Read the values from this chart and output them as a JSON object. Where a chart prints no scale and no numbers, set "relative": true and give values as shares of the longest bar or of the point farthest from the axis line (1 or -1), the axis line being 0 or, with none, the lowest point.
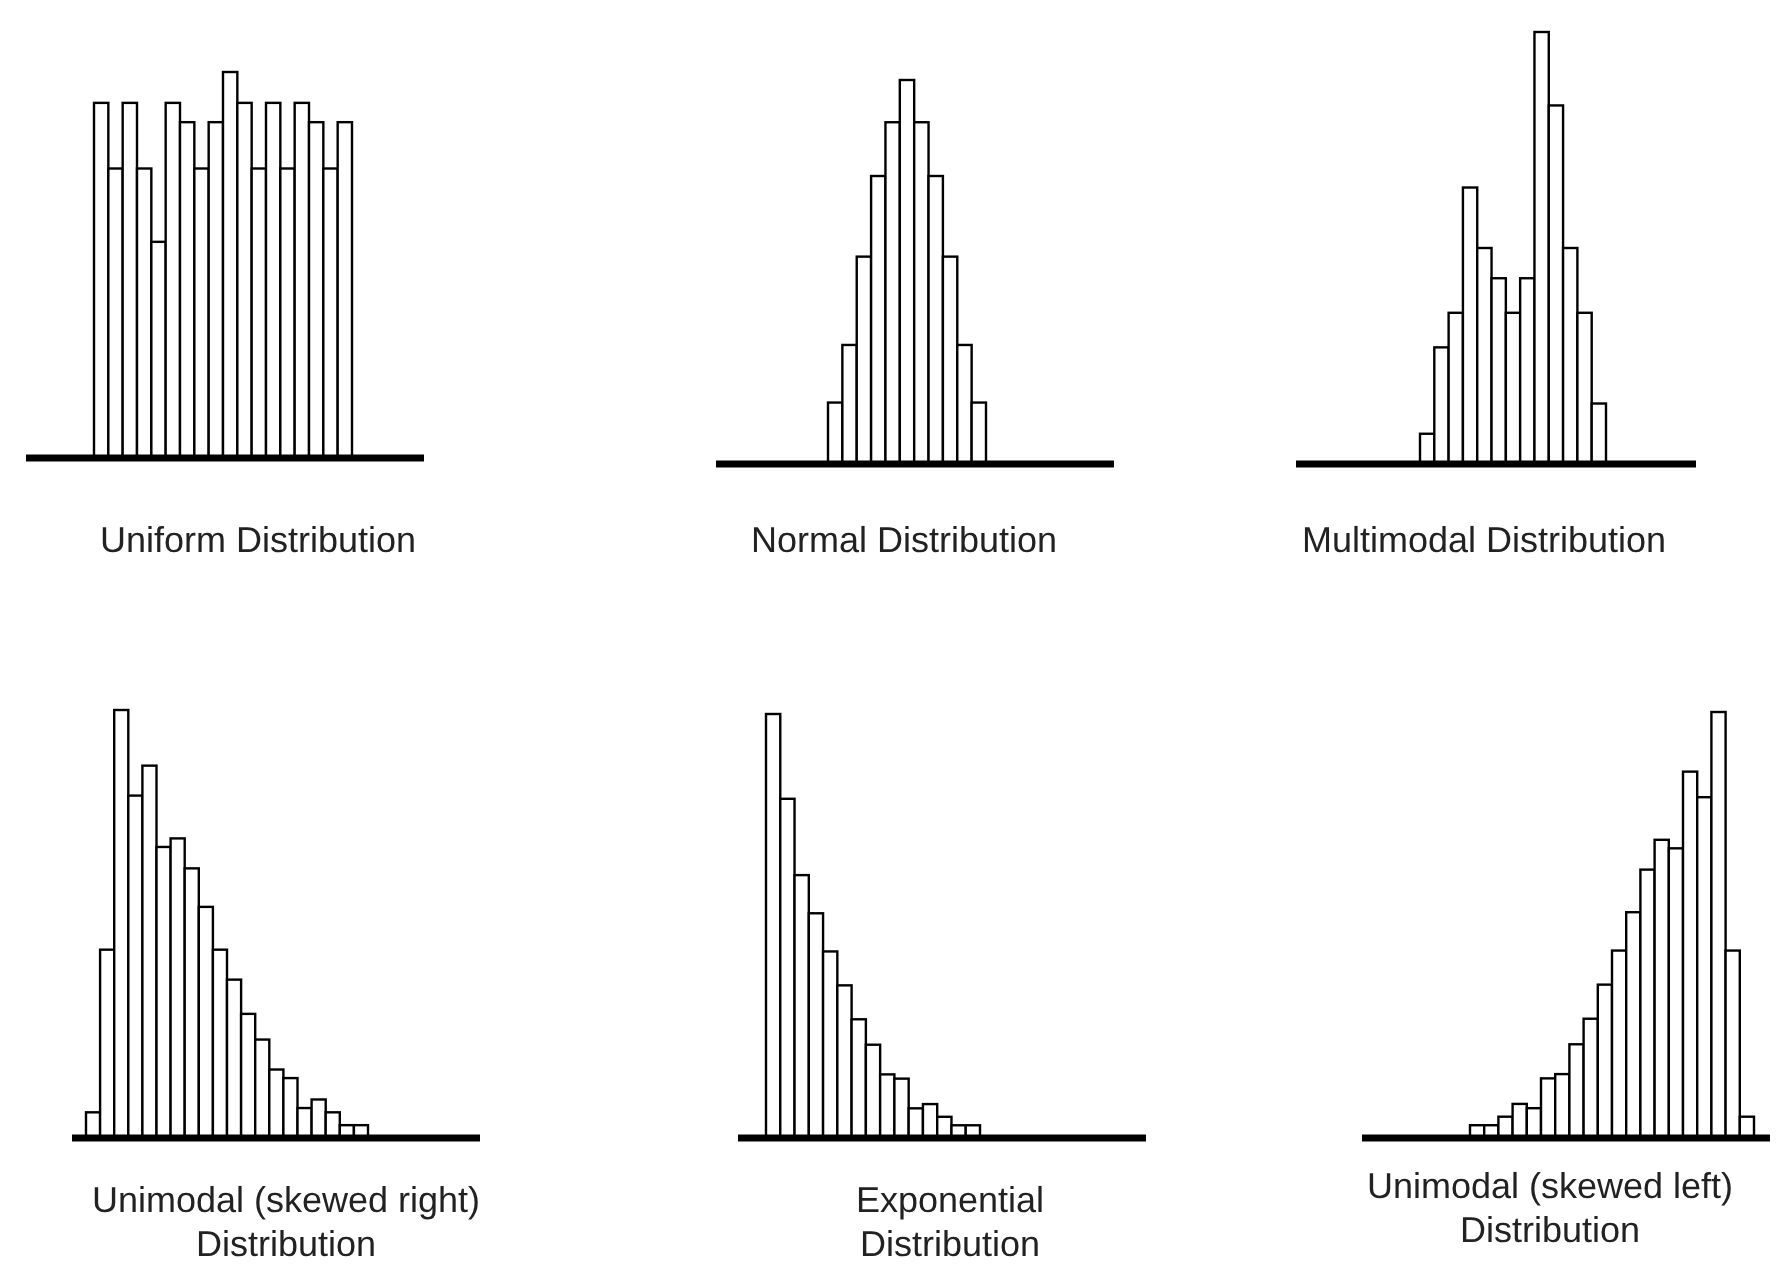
{
  "chart_data": [
    {
      "type": "bar",
      "title": "Uniform Distribution",
      "relative": true,
      "color": "#ffffff",
      "categories": [
        null,
        null,
        null,
        null,
        null,
        null,
        null,
        null,
        null,
        null,
        null,
        null,
        null,
        null,
        null,
        null,
        null,
        null
      ],
      "values": [
        0.92,
        0.75,
        0.92,
        0.75,
        0.56,
        0.92,
        0.87,
        0.75,
        0.87,
        1,
        0.92,
        0.75,
        0.92,
        0.75,
        0.92,
        0.87,
        0.75,
        0.87
      ]
    },
    {
      "type": "bar",
      "title": "Normal Distribution",
      "relative": true,
      "color": "#ffffff",
      "categories": [
        null,
        null,
        null,
        null,
        null,
        null,
        null,
        null,
        null,
        null,
        null
      ],
      "values": [
        0.16,
        0.31,
        0.54,
        0.75,
        0.89,
        1,
        0.89,
        0.75,
        0.54,
        0.31,
        0.16
      ]
    },
    {
      "type": "bar",
      "title": "Multimodal Distribution",
      "relative": true,
      "color": "#ffffff",
      "categories": [
        null,
        null,
        null,
        null,
        null,
        null,
        null,
        null,
        null,
        null,
        null,
        null,
        null
      ],
      "values": [
        0.07,
        0.27,
        0.35,
        0.64,
        0.5,
        0.43,
        0.35,
        0.43,
        1,
        0.83,
        0.5,
        0.35,
        0.14
      ]
    },
    {
      "type": "bar",
      "title": "Unimodal (skewed right) Distribution",
      "relative": true,
      "color": "#ffffff",
      "categories": [
        null,
        null,
        null,
        null,
        null,
        null,
        null,
        null,
        null,
        null,
        null,
        null,
        null,
        null,
        null,
        null,
        null,
        null,
        null,
        null
      ],
      "values": [
        0.06,
        0.44,
        1,
        0.8,
        0.87,
        0.68,
        0.7,
        0.63,
        0.54,
        0.44,
        0.37,
        0.29,
        0.23,
        0.16,
        0.14,
        0.07,
        0.09,
        0.06,
        0.03,
        0.03
      ]
    },
    {
      "type": "bar",
      "title": "Exponential Distribution",
      "relative": true,
      "color": "#ffffff",
      "categories": [
        null,
        null,
        null,
        null,
        null,
        null,
        null,
        null,
        null,
        null,
        null,
        null,
        null,
        null,
        null
      ],
      "values": [
        1,
        0.8,
        0.62,
        0.53,
        0.44,
        0.36,
        0.28,
        0.22,
        0.15,
        0.14,
        0.07,
        0.08,
        0.05,
        0.03,
        0.03
      ]
    },
    {
      "type": "bar",
      "title": "Unimodal (skewed left) Distribution",
      "relative": true,
      "color": "#ffffff",
      "categories": [
        null,
        null,
        null,
        null,
        null,
        null,
        null,
        null,
        null,
        null,
        null,
        null,
        null,
        null,
        null,
        null,
        null,
        null,
        null,
        null
      ],
      "values": [
        0.03,
        0.03,
        0.05,
        0.08,
        0.07,
        0.14,
        0.15,
        0.22,
        0.28,
        0.36,
        0.44,
        0.53,
        0.63,
        0.7,
        0.68,
        0.86,
        0.8,
        1,
        0.44,
        0.05
      ]
    }
  ]
}
